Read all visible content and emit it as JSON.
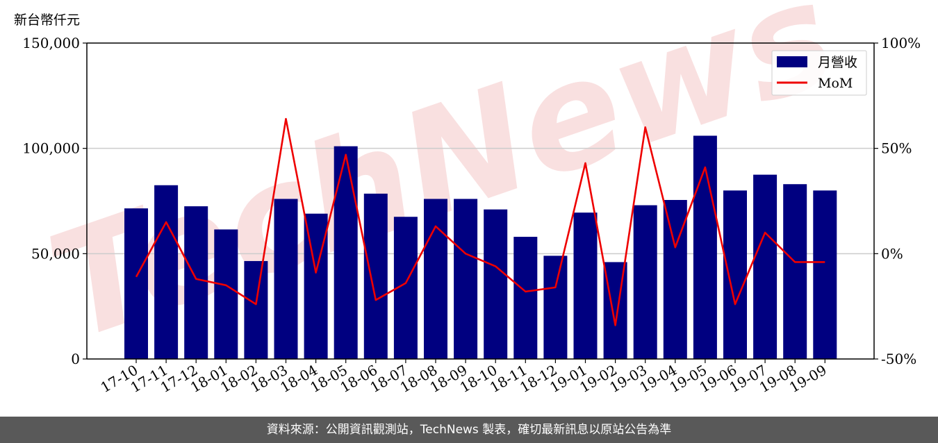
{
  "unit_label": "新台幣仟元",
  "footer_text": "資料來源：公開資訊觀測站，TechNews 製表，確切最新訊息以原站公告為準",
  "watermark_text": "TechNews",
  "colors": {
    "bar": "#000080",
    "line": "#ee0000",
    "grid": "#cccccc",
    "footer_bg": "#595959",
    "watermark": "#f5c8c8"
  },
  "chart_data": {
    "type": "bar",
    "categories": [
      "17-10",
      "17-11",
      "17-12",
      "18-01",
      "18-02",
      "18-03",
      "18-04",
      "18-05",
      "18-06",
      "18-07",
      "18-08",
      "18-09",
      "18-10",
      "18-11",
      "18-12",
      "19-01",
      "19-02",
      "19-03",
      "19-04",
      "19-05",
      "19-06",
      "19-07",
      "19-08",
      "19-09"
    ],
    "series": [
      {
        "name": "月營收",
        "type": "bar",
        "axis": "left",
        "values": [
          71500,
          82500,
          72500,
          61500,
          46500,
          76000,
          69000,
          101000,
          78500,
          67500,
          76000,
          76000,
          71000,
          58000,
          49000,
          69500,
          46000,
          73000,
          75500,
          106000,
          80000,
          87500,
          83000,
          80000
        ]
      },
      {
        "name": "MoM",
        "type": "line",
        "axis": "right",
        "values": [
          -11,
          15,
          -12,
          -15,
          -24,
          64,
          -9,
          47,
          -22,
          -14,
          13,
          0,
          -6,
          -18,
          -16,
          43,
          -34,
          60,
          3,
          41,
          -24,
          10,
          -4,
          -4
        ]
      }
    ],
    "y_left": {
      "ylim": [
        0,
        150000
      ],
      "ticks": [
        0,
        50000,
        100000,
        150000
      ],
      "tick_labels": [
        "0",
        "50,000",
        "100,000",
        "150,000"
      ]
    },
    "y_right": {
      "ylim": [
        -50,
        100
      ],
      "ticks": [
        -50,
        0,
        50,
        100
      ],
      "tick_labels": [
        "-50%",
        "0%",
        "50%",
        "100%"
      ]
    },
    "grid": "horizontal",
    "legend_position": "top-right"
  }
}
